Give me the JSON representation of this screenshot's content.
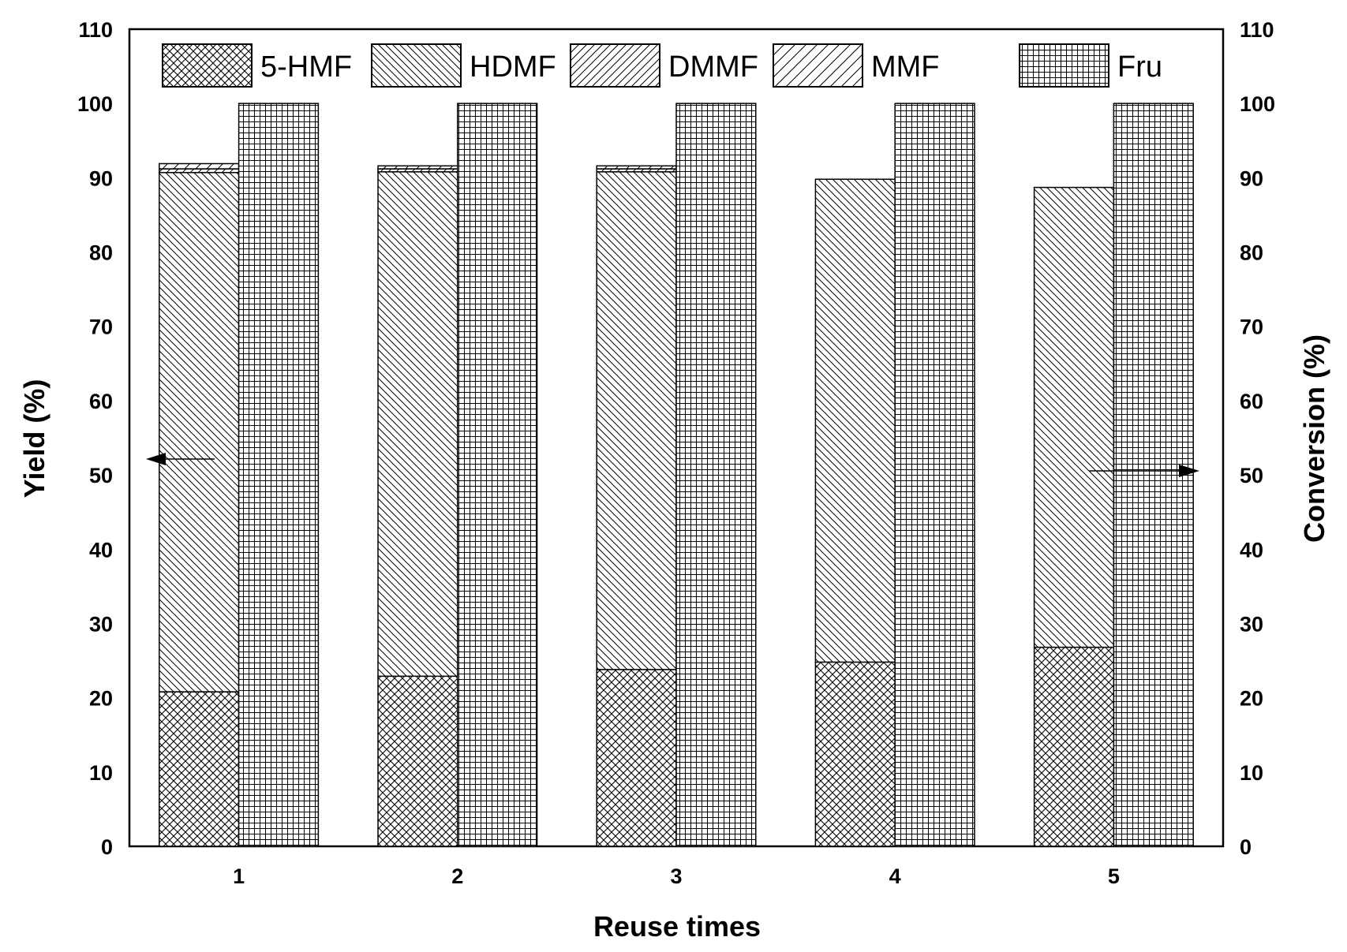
{
  "chart_data": {
    "type": "bar",
    "stacked": true,
    "xlabel": "Reuse times",
    "ylabel": "Yield (%)",
    "y2label": "Conversion (%)",
    "categories": [
      "1",
      "2",
      "3",
      "4",
      "5"
    ],
    "ylim": [
      0,
      110
    ],
    "y2lim": [
      0,
      110
    ],
    "yticks": [
      "0",
      "10",
      "20",
      "30",
      "40",
      "50",
      "60",
      "70",
      "80",
      "90",
      "100",
      "110"
    ],
    "legend_position": "top",
    "series": [
      {
        "name": "5-HMF",
        "axis": "left",
        "stack": "yield",
        "values": [
          20.8,
          22.9,
          23.8,
          24.8,
          26.8
        ]
      },
      {
        "name": "HDMF",
        "axis": "left",
        "stack": "yield",
        "values": [
          69.9,
          67.9,
          67.0,
          65.0,
          61.9
        ]
      },
      {
        "name": "DMMF",
        "axis": "left",
        "stack": "yield",
        "values": [
          0.5,
          0.4,
          0.4,
          0.0,
          0.0
        ]
      },
      {
        "name": "MMF",
        "axis": "left",
        "stack": "yield",
        "values": [
          0.7,
          0.4,
          0.4,
          0.0,
          0.0
        ]
      },
      {
        "name": "Fru",
        "axis": "right",
        "stack": "conversion",
        "values": [
          100,
          100,
          100,
          100,
          100
        ]
      }
    ]
  }
}
